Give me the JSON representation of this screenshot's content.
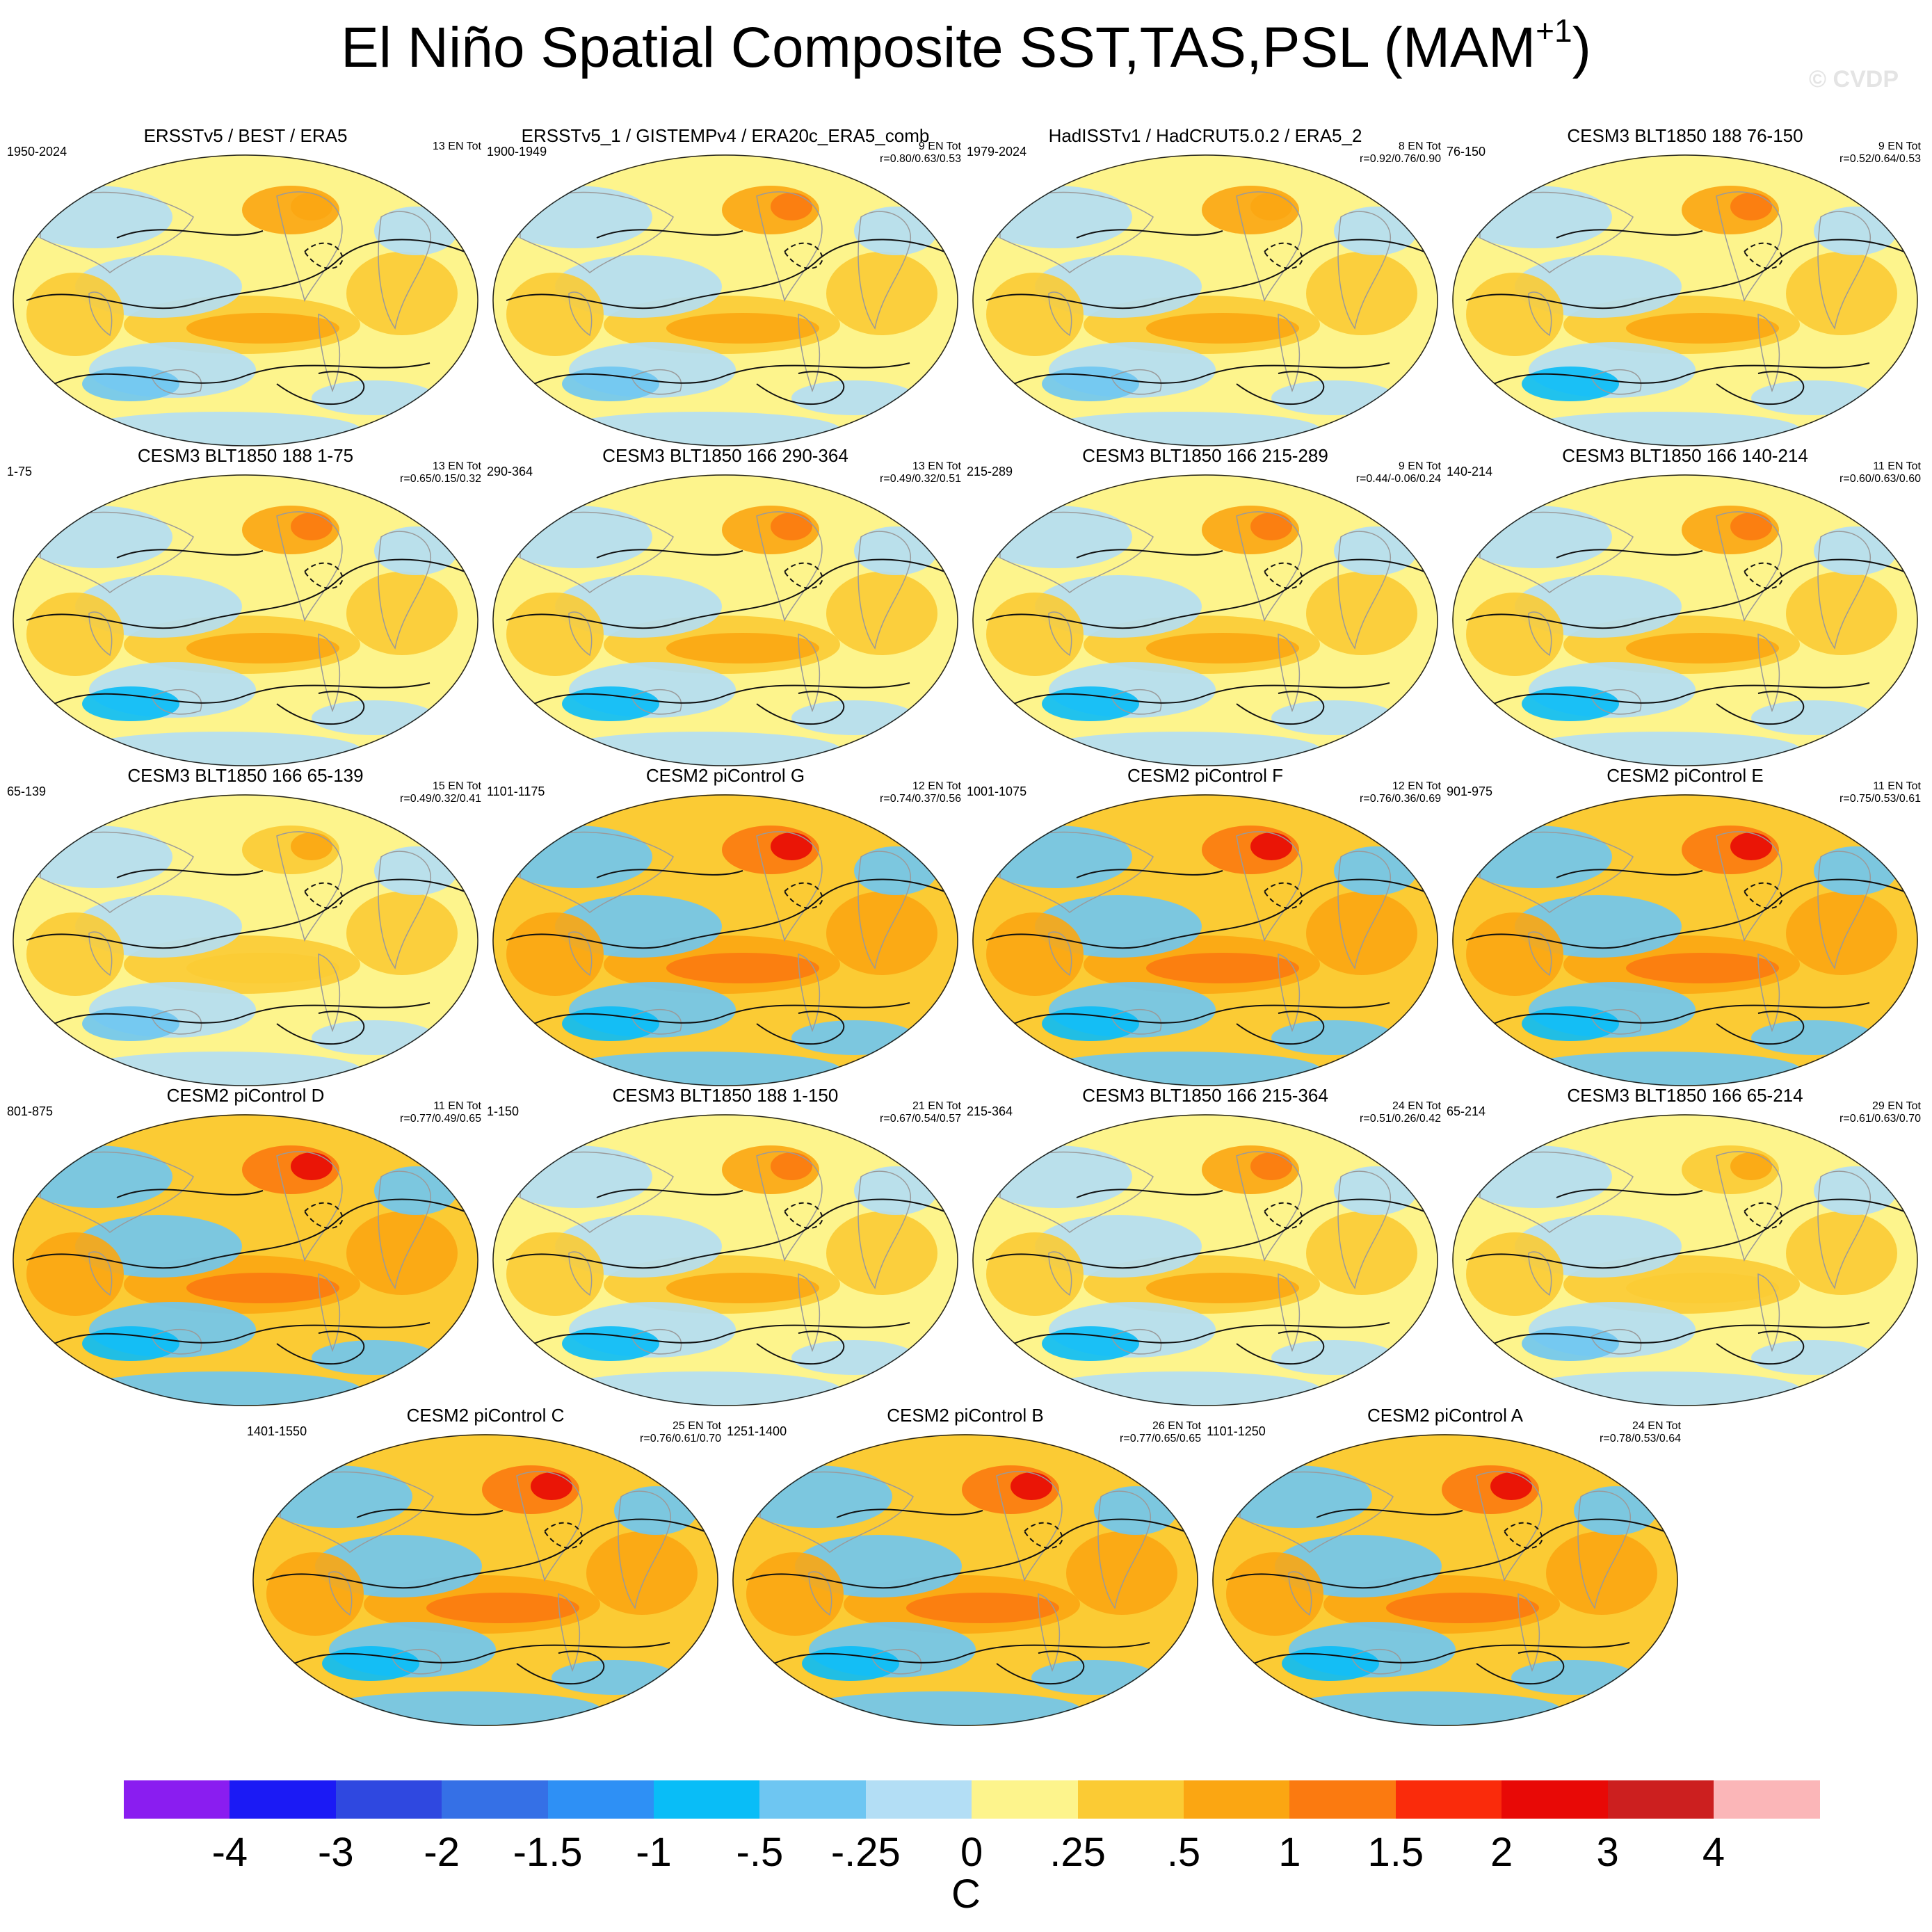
{
  "figure": {
    "title_main": "El Niño Spatial Composite SST,TAS,PSL (MAM",
    "title_sup": "+1",
    "title_end": ")",
    "watermark": "© CVDP"
  },
  "chart_data": {
    "type": "heatmap",
    "title": "El Niño Spatial Composite SST,TAS,PSL (MAM+1)",
    "colorbar": {
      "unit": "C",
      "ticks": [
        "-4",
        "-3",
        "-2",
        "-1.5",
        "-1",
        "-.5",
        "-.25",
        "0",
        ".25",
        ".5",
        "1",
        "1.5",
        "2",
        "3",
        "4"
      ],
      "colors": [
        "#8a1df0",
        "#1b1af5",
        "#2f48e0",
        "#3570e6",
        "#2e90f5",
        "#09bdf7",
        "#6ec6f2",
        "#b3def5",
        "#fdf48c",
        "#fbcb34",
        "#fba612",
        "#fb7a10",
        "#fa2b0b",
        "#e80906",
        "#cc1f1f",
        "#fbb6b8"
      ]
    },
    "panels": [
      {
        "title": "ERSSTv5 / BEST / ERA5",
        "years": "1950-2024",
        "en": "13 EN Tot",
        "r": "",
        "style": "obs"
      },
      {
        "title": "ERSSTv5_1 / GISTEMPv4 / ERA20c_ERA5_comb",
        "years": "1900-1949",
        "en": "9 EN Tot",
        "r": "r=0.80/0.63/0.53",
        "style": "obs2"
      },
      {
        "title": "HadISSTv1 / HadCRUT5.0.2 / ERA5_2",
        "years": "1979-2024",
        "en": "8 EN Tot",
        "r": "r=0.92/0.76/0.90",
        "style": "obs"
      },
      {
        "title": "CESM3 BLT1850 188 76-150",
        "years": "76-150",
        "en": "9 EN Tot",
        "r": "r=0.52/0.64/0.53",
        "style": "blt"
      },
      {
        "title": "CESM3 BLT1850 188 1-75",
        "years": "1-75",
        "en": "13 EN Tot",
        "r": "r=0.65/0.15/0.32",
        "style": "blt"
      },
      {
        "title": "CESM3 BLT1850 166 290-364",
        "years": "290-364",
        "en": "13 EN Tot",
        "r": "r=0.49/0.32/0.51",
        "style": "blt"
      },
      {
        "title": "CESM3 BLT1850 166 215-289",
        "years": "215-289",
        "en": "9 EN Tot",
        "r": "r=0.44/-0.06/0.24",
        "style": "blt"
      },
      {
        "title": "CESM3 BLT1850 166 140-214",
        "years": "140-214",
        "en": "11 EN Tot",
        "r": "r=0.60/0.63/0.60",
        "style": "blt"
      },
      {
        "title": "CESM3 BLT1850 166 65-139",
        "years": "65-139",
        "en": "15 EN Tot",
        "r": "r=0.49/0.32/0.41",
        "style": "weak"
      },
      {
        "title": "CESM2 piControl G",
        "years": "1101-1175",
        "en": "12 EN Tot",
        "r": "r=0.74/0.37/0.56",
        "style": "cesm2"
      },
      {
        "title": "CESM2 piControl F",
        "years": "1001-1075",
        "en": "12 EN Tot",
        "r": "r=0.76/0.36/0.69",
        "style": "cesm2"
      },
      {
        "title": "CESM2 piControl E",
        "years": "901-975",
        "en": "11 EN Tot",
        "r": "r=0.75/0.53/0.61",
        "style": "cesm2"
      },
      {
        "title": "CESM2 piControl D",
        "years": "801-875",
        "en": "11 EN Tot",
        "r": "r=0.77/0.49/0.65",
        "style": "cesm2"
      },
      {
        "title": "CESM3 BLT1850 188 1-150",
        "years": "1-150",
        "en": "21 EN Tot",
        "r": "r=0.67/0.54/0.57",
        "style": "blt"
      },
      {
        "title": "CESM3 BLT1850 166 215-364",
        "years": "215-364",
        "en": "24 EN Tot",
        "r": "r=0.51/0.26/0.42",
        "style": "blt"
      },
      {
        "title": "CESM3 BLT1850 166 65-214",
        "years": "65-214",
        "en": "29 EN Tot",
        "r": "r=0.61/0.63/0.70",
        "style": "weak"
      },
      {
        "title": "CESM2 piControl C",
        "years": "1401-1550",
        "en": "25 EN Tot",
        "r": "r=0.76/0.61/0.70",
        "style": "cesm2"
      },
      {
        "title": "CESM2 piControl B",
        "years": "1251-1400",
        "en": "26 EN Tot",
        "r": "r=0.77/0.65/0.65",
        "style": "cesm2"
      },
      {
        "title": "CESM2 piControl A",
        "years": "1101-1250",
        "en": "24 EN Tot",
        "r": "r=0.78/0.53/0.64",
        "style": "cesm2"
      }
    ]
  }
}
